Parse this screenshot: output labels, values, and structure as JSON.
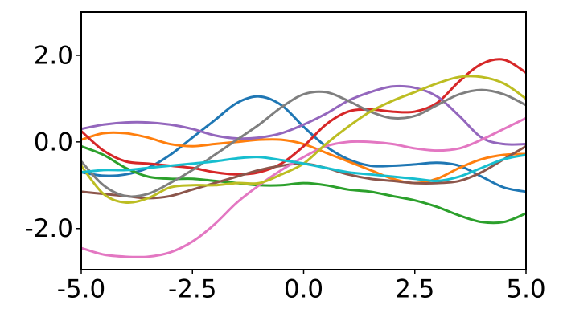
{
  "chart_data": {
    "type": "line",
    "x": [
      -5,
      -4.5,
      -4,
      -3.5,
      -3,
      -2.5,
      -2,
      -1.5,
      -1,
      -0.5,
      0,
      0.5,
      1,
      1.5,
      2,
      2.5,
      3,
      3.5,
      4,
      4.5,
      5
    ],
    "series": [
      {
        "color": "#1f77b4",
        "values": [
          -0.7,
          -0.78,
          -0.75,
          -0.6,
          -0.3,
          0.1,
          0.5,
          0.9,
          1.05,
          0.85,
          0.35,
          -0.1,
          -0.4,
          -0.55,
          -0.55,
          -0.52,
          -0.48,
          -0.55,
          -0.8,
          -1.05,
          -1.15
        ]
      },
      {
        "color": "#ff7f0e",
        "values": [
          0.05,
          0.2,
          0.2,
          0.1,
          -0.05,
          -0.1,
          -0.05,
          0.0,
          0.05,
          0.05,
          -0.05,
          -0.25,
          -0.45,
          -0.65,
          -0.85,
          -0.95,
          -0.85,
          -0.6,
          -0.4,
          -0.3,
          -0.28
        ]
      },
      {
        "color": "#2ca02c",
        "values": [
          -0.1,
          -0.3,
          -0.6,
          -0.8,
          -0.85,
          -0.85,
          -0.9,
          -0.95,
          -1.0,
          -1.0,
          -0.95,
          -1.0,
          -1.1,
          -1.15,
          -1.25,
          -1.35,
          -1.5,
          -1.7,
          -1.85,
          -1.85,
          -1.65
        ]
      },
      {
        "color": "#d62728",
        "values": [
          0.25,
          -0.2,
          -0.45,
          -0.5,
          -0.55,
          -0.6,
          -0.7,
          -0.75,
          -0.7,
          -0.5,
          -0.1,
          0.4,
          0.7,
          0.75,
          0.7,
          0.7,
          0.9,
          1.4,
          1.8,
          1.9,
          1.6
        ]
      },
      {
        "color": "#9467bd",
        "values": [
          0.3,
          0.4,
          0.45,
          0.45,
          0.4,
          0.3,
          0.15,
          0.08,
          0.1,
          0.2,
          0.4,
          0.65,
          0.95,
          1.15,
          1.28,
          1.25,
          1.05,
          0.6,
          0.1,
          -0.05,
          -0.05
        ]
      },
      {
        "color": "#8c564b",
        "values": [
          -1.15,
          -1.2,
          -1.25,
          -1.3,
          -1.25,
          -1.1,
          -0.95,
          -0.8,
          -0.65,
          -0.55,
          -0.5,
          -0.6,
          -0.75,
          -0.85,
          -0.9,
          -0.95,
          -0.95,
          -0.9,
          -0.7,
          -0.4,
          -0.1
        ]
      },
      {
        "color": "#e377c2",
        "values": [
          -2.45,
          -2.6,
          -2.65,
          -2.65,
          -2.55,
          -2.3,
          -1.9,
          -1.4,
          -1.0,
          -0.65,
          -0.35,
          -0.1,
          0.0,
          0.0,
          -0.05,
          -0.15,
          -0.2,
          -0.15,
          0.05,
          0.3,
          0.55
        ]
      },
      {
        "color": "#7f7f7f",
        "values": [
          -0.45,
          -1.0,
          -1.25,
          -1.2,
          -0.95,
          -0.65,
          -0.3,
          0.05,
          0.4,
          0.8,
          1.1,
          1.15,
          0.95,
          0.7,
          0.55,
          0.6,
          0.85,
          1.1,
          1.2,
          1.1,
          0.85
        ]
      },
      {
        "color": "#bcbd22",
        "values": [
          -0.55,
          -1.2,
          -1.4,
          -1.3,
          -1.05,
          -1.0,
          -1.0,
          -0.95,
          -0.95,
          -0.75,
          -0.5,
          -0.05,
          0.35,
          0.7,
          0.95,
          1.15,
          1.35,
          1.5,
          1.5,
          1.35,
          1.0
        ]
      },
      {
        "color": "#17becf",
        "values": [
          -0.7,
          -0.65,
          -0.65,
          -0.6,
          -0.55,
          -0.5,
          -0.45,
          -0.38,
          -0.35,
          -0.42,
          -0.5,
          -0.6,
          -0.7,
          -0.75,
          -0.8,
          -0.85,
          -0.9,
          -0.8,
          -0.6,
          -0.4,
          -0.3
        ]
      }
    ],
    "xlim": [
      -5,
      5
    ],
    "ylim": [
      -2.95,
      3.0
    ],
    "xticks": [
      {
        "value": -5,
        "label": "-5.0"
      },
      {
        "value": -2.5,
        "label": "-2.5"
      },
      {
        "value": 0,
        "label": "0.0"
      },
      {
        "value": 2.5,
        "label": "2.5"
      },
      {
        "value": 5,
        "label": "5.0"
      }
    ],
    "yticks": [
      {
        "value": -2,
        "label": "-2.0"
      },
      {
        "value": 0,
        "label": "0.0"
      },
      {
        "value": 2,
        "label": "2.0"
      }
    ],
    "grid": false
  }
}
